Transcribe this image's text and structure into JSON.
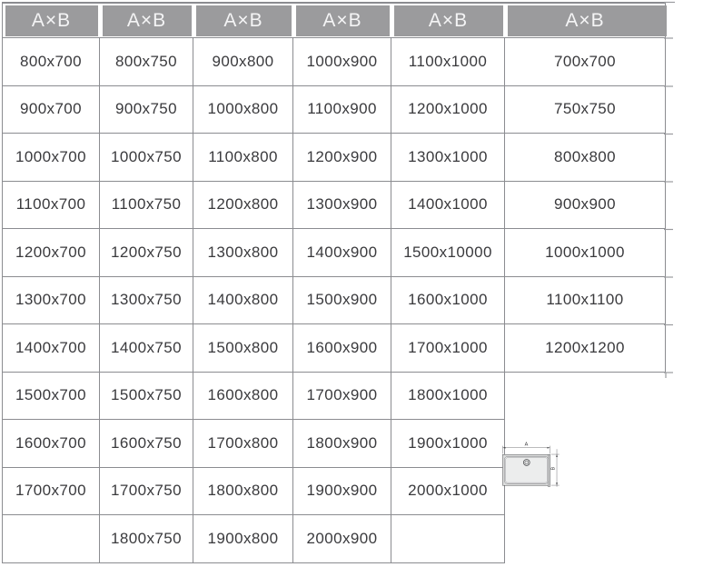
{
  "table": {
    "header_label": "A×B",
    "columns": 6,
    "rows": [
      [
        "800x700",
        "800x750",
        "900x800",
        "1000x900",
        "1100x1000",
        "700x700"
      ],
      [
        "900x700",
        "900x750",
        "1000x800",
        "1100x900",
        "1200x1000",
        "750x750"
      ],
      [
        "1000x700",
        "1000x750",
        "1100x800",
        "1200x900",
        "1300x1000",
        "800x800"
      ],
      [
        "1100x700",
        "1100x750",
        "1200x800",
        "1300x900",
        "1400x1000",
        "900x900"
      ],
      [
        "1200x700",
        "1200x750",
        "1300x800",
        "1400x900",
        "1500x10000",
        "1000x1000"
      ],
      [
        "1300x700",
        "1300x750",
        "1400x800",
        "1500x900",
        "1600x1000",
        "1100x1100"
      ],
      [
        "1400x700",
        "1400x750",
        "1500x800",
        "1600x900",
        "1700x1000",
        "1200x1200"
      ],
      [
        "1500x700",
        "1500x750",
        "1600x800",
        "1700x900",
        "1800x1000",
        null
      ],
      [
        "1600x700",
        "1600x750",
        "1700x800",
        "1800x900",
        "1900x1000",
        null
      ],
      [
        "1700x700",
        "1700x750",
        "1800x800",
        "1900x900",
        "2000x1000",
        null
      ],
      [
        "",
        "1800x750",
        "1900x800",
        "2000x900",
        "",
        null
      ]
    ]
  },
  "diagram": {
    "width_label": "A",
    "height_label": "B"
  },
  "colors": {
    "header_bg": "#9b9b9d",
    "header_text": "#f4f4f5",
    "cell_text": "#3a3a3d",
    "grid_line": "#8b8c90",
    "diagram_line": "#3f4043",
    "tray_fill": "#dcdddd",
    "tray_strip_fill": "#d6d7d7",
    "tray_inner_fill": "#e9eaea",
    "tray_inner2_fill": "#eceded"
  }
}
